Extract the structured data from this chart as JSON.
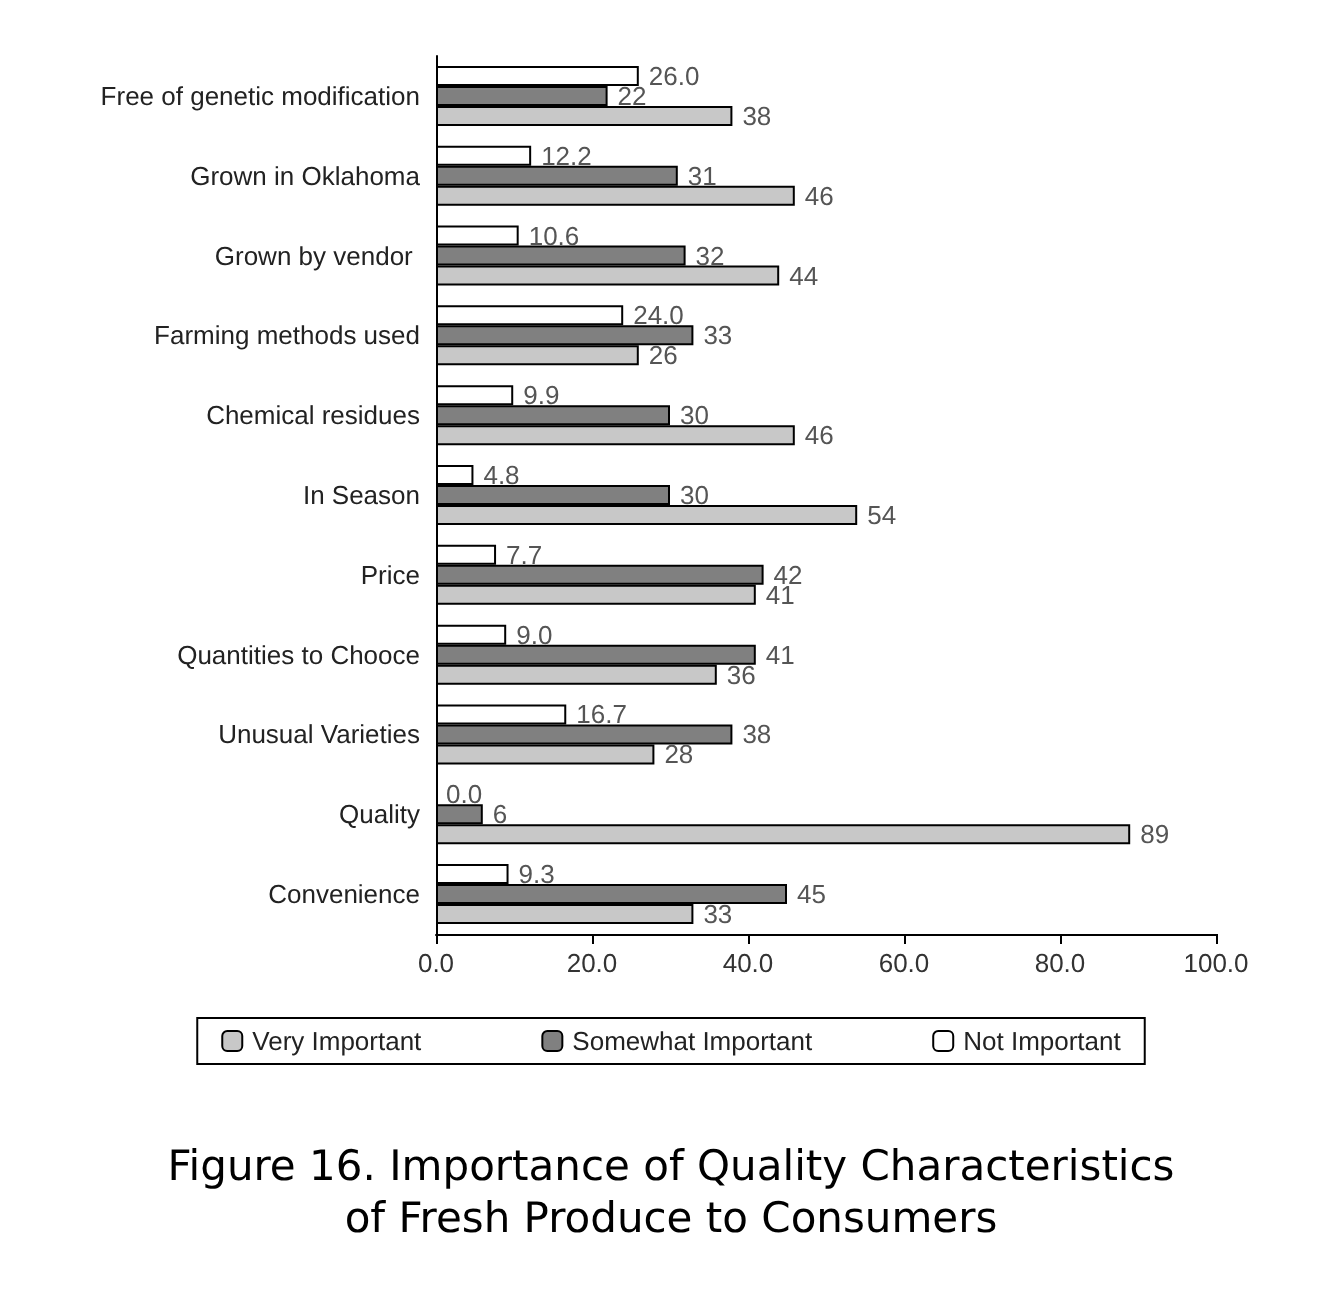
{
  "chart_data": {
    "type": "bar",
    "orientation": "horizontal",
    "categories": [
      "Free of genetic modification",
      "Grown in Oklahoma",
      "Grown by vendor ",
      "Farming methods used",
      "Chemical residues",
      "In Season",
      "Price",
      "Quantities to Chooce",
      "Unusual Varieties",
      "Quality",
      "Convenience"
    ],
    "series": [
      {
        "name": "Very Important",
        "color": "#c8c8c8",
        "values": [
          38,
          46,
          44,
          26,
          46,
          54,
          41,
          36,
          28,
          89,
          33
        ],
        "value_labels": [
          "38",
          "46",
          "44",
          "26",
          "46",
          "54",
          "41",
          "36",
          "28",
          "89",
          "33"
        ]
      },
      {
        "name": "Somewhat Important",
        "color": "#808080",
        "values": [
          22,
          31,
          32,
          33,
          30,
          30,
          42,
          41,
          38,
          6,
          45
        ],
        "value_labels": [
          "22",
          "31",
          "32",
          "33",
          "30",
          "30",
          "42",
          "41",
          "38",
          "6",
          "45"
        ]
      },
      {
        "name": "Not Important",
        "color": "#ffffff",
        "values": [
          26.0,
          12.2,
          10.6,
          24.0,
          9.9,
          4.8,
          7.7,
          9.0,
          16.7,
          0.0,
          9.3
        ],
        "value_labels": [
          "26.0",
          "12.2",
          "10.6",
          "24.0",
          "9.9",
          "4.8",
          "7.7",
          "9.0",
          "16.7",
          "0.0",
          "9.3"
        ]
      }
    ],
    "xlim": [
      0,
      100
    ],
    "xticks": [
      {
        "value": 0,
        "label": "0.0"
      },
      {
        "value": 20,
        "label": "20.0"
      },
      {
        "value": 40,
        "label": "40.0"
      },
      {
        "value": 60,
        "label": "60.0"
      },
      {
        "value": 80,
        "label": "80.0"
      },
      {
        "value": 100,
        "label": "100.0"
      }
    ],
    "grid": false,
    "legend": "bottom",
    "annotations": [
      "Figure 16. Importance of Quality Characteristics\nof Fresh Produce to Consumers"
    ]
  }
}
